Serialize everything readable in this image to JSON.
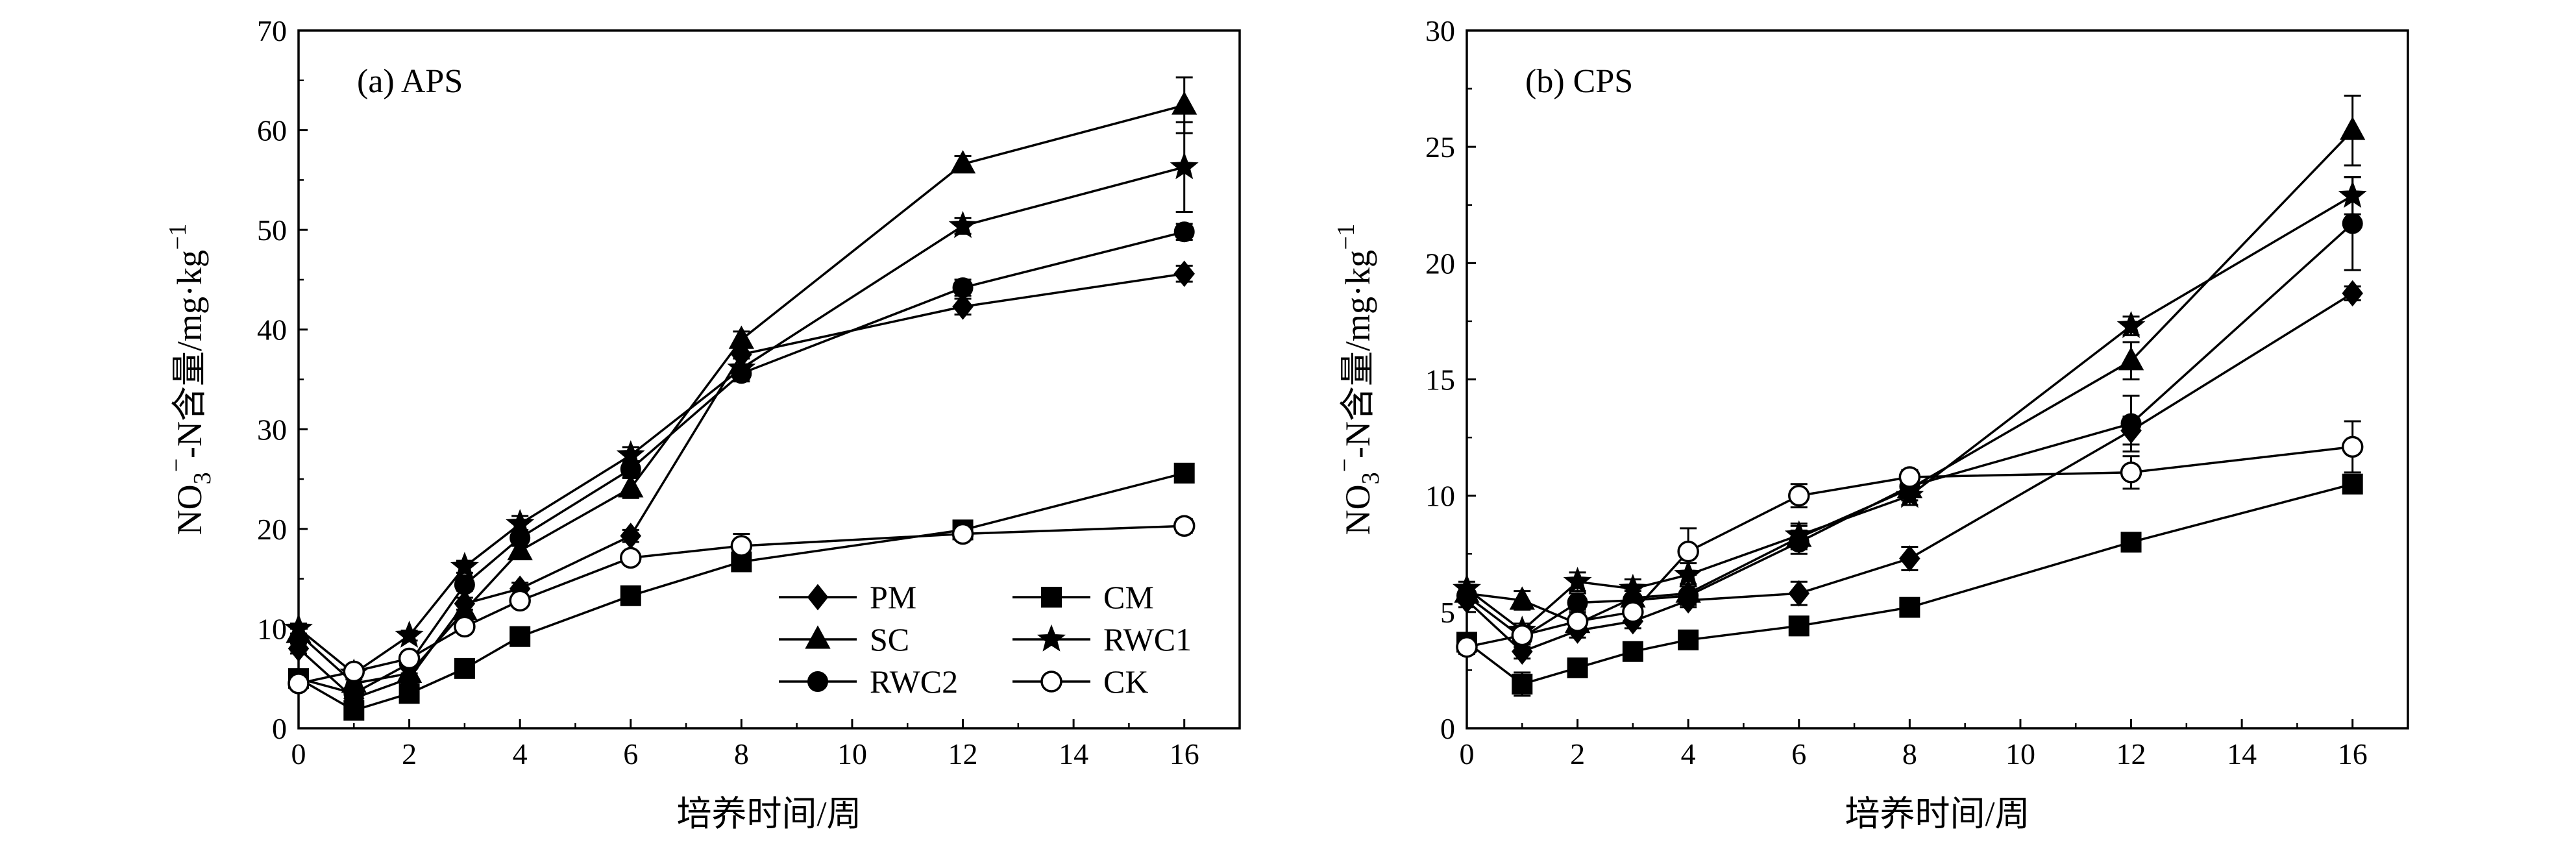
{
  "chart_data": [
    {
      "type": "line",
      "title": "(a) APS",
      "xlabel": "培养时间/周",
      "ylabel_main": "NO",
      "ylabel_sub": "3",
      "ylabel_sup_minus": "−",
      "ylabel_rest": "-N含量/mg·kg",
      "ylabel_unit_sup": "−1",
      "xlim": [
        0,
        17
      ],
      "ylim": [
        0,
        70
      ],
      "xticks": [
        0,
        2,
        4,
        6,
        8,
        10,
        12,
        14,
        16
      ],
      "yticks": [
        0,
        10,
        20,
        30,
        40,
        50,
        60,
        70
      ],
      "x": [
        0,
        1,
        2,
        3,
        4,
        6,
        8,
        12,
        16
      ],
      "legend_placement": "bottom-right",
      "series": [
        {
          "name": "PM",
          "marker": "diamond",
          "values": [
            8.0,
            3.0,
            5.0,
            12.5,
            14.0,
            19.3,
            37.5,
            42.3,
            45.6
          ],
          "errors": [
            0.5,
            0.4,
            0.5,
            0.6,
            0.6,
            0.6,
            1.0,
            0.8,
            0.8
          ]
        },
        {
          "name": "CM",
          "marker": "square",
          "values": [
            5.0,
            1.8,
            3.5,
            6.0,
            9.2,
            13.3,
            16.7,
            19.9,
            25.6
          ],
          "errors": [
            0.4,
            0.3,
            0.4,
            0.4,
            0.5,
            0.5,
            0.6,
            0.6,
            0.7
          ]
        },
        {
          "name": "SC",
          "marker": "triangle",
          "values": [
            9.5,
            4.5,
            5.5,
            11.8,
            17.8,
            24.1,
            39.0,
            56.6,
            62.5
          ],
          "errors": [
            0.5,
            0.4,
            0.5,
            0.6,
            0.8,
            1.0,
            0.8,
            0.8,
            2.8
          ]
        },
        {
          "name": "RWC1",
          "marker": "star",
          "values": [
            10.0,
            5.5,
            9.3,
            16.2,
            20.5,
            27.4,
            36.1,
            50.4,
            56.3
          ],
          "errors": [
            0.5,
            0.4,
            0.5,
            0.6,
            0.8,
            0.8,
            1.0,
            0.8,
            4.5
          ]
        },
        {
          "name": "RWC2",
          "marker": "circle-filled",
          "values": [
            5.0,
            3.5,
            6.5,
            14.4,
            19.1,
            26.0,
            35.6,
            44.2,
            49.8
          ],
          "errors": [
            0.4,
            0.4,
            0.5,
            0.6,
            0.8,
            0.8,
            0.8,
            0.8,
            0.8
          ]
        },
        {
          "name": "CK",
          "marker": "circle-open",
          "values": [
            4.5,
            5.7,
            7.0,
            10.2,
            12.8,
            17.1,
            18.3,
            19.5,
            20.3
          ],
          "errors": [
            0.4,
            0.4,
            0.5,
            0.6,
            0.6,
            0.5,
            1.2,
            0.6,
            0.7
          ]
        }
      ]
    },
    {
      "type": "line",
      "title": "(b) CPS",
      "xlabel": "培养时间/周",
      "ylabel_main": "NO",
      "ylabel_sub": "3",
      "ylabel_sup_minus": "−",
      "ylabel_rest": "-N含量/mg·kg",
      "ylabel_unit_sup": "−1",
      "xlim": [
        0,
        17
      ],
      "ylim": [
        0,
        30
      ],
      "xticks": [
        0,
        2,
        4,
        6,
        8,
        10,
        12,
        14,
        16
      ],
      "yticks": [
        0,
        5,
        10,
        15,
        20,
        25,
        30
      ],
      "x": [
        0,
        1,
        2,
        3,
        4,
        6,
        8,
        12,
        16
      ],
      "series": [
        {
          "name": "PM",
          "marker": "diamond",
          "values": [
            5.5,
            3.3,
            4.2,
            4.6,
            5.5,
            5.8,
            7.3,
            12.8,
            18.7
          ],
          "errors": [
            0.3,
            0.3,
            0.3,
            0.3,
            0.3,
            0.5,
            0.5,
            0.6,
            0.3
          ]
        },
        {
          "name": "CM",
          "marker": "square",
          "values": [
            3.7,
            1.9,
            2.6,
            3.3,
            3.8,
            4.4,
            5.2,
            8.0,
            10.5
          ],
          "errors": [
            0.3,
            0.5,
            0.3,
            0.3,
            0.3,
            0.4,
            0.3,
            0.4,
            0.3
          ]
        },
        {
          "name": "SC",
          "marker": "triangle",
          "values": [
            5.8,
            5.5,
            4.5,
            5.6,
            5.8,
            8.2,
            10.3,
            15.8,
            25.7
          ],
          "errors": [
            0.3,
            0.4,
            0.4,
            0.4,
            0.4,
            0.5,
            0.5,
            0.8,
            1.5
          ]
        },
        {
          "name": "RWC1",
          "marker": "star",
          "values": [
            6.0,
            4.2,
            6.3,
            6.0,
            6.6,
            8.3,
            10.0,
            17.3,
            22.9
          ],
          "errors": [
            0.3,
            0.3,
            0.4,
            0.4,
            0.5,
            0.5,
            0.4,
            0.4,
            0.8
          ]
        },
        {
          "name": "RWC2",
          "marker": "circle-filled",
          "values": [
            5.7,
            3.9,
            5.4,
            5.5,
            5.7,
            8.0,
            10.4,
            13.1,
            21.7
          ],
          "errors": [
            0.3,
            0.4,
            0.4,
            0.4,
            0.4,
            0.5,
            0.4,
            1.2,
            2.0
          ]
        },
        {
          "name": "CK",
          "marker": "circle-open",
          "values": [
            3.5,
            4.0,
            4.6,
            5.0,
            7.6,
            10.0,
            10.8,
            11.0,
            12.1
          ],
          "errors": [
            0.3,
            0.4,
            0.5,
            0.4,
            1.0,
            0.5,
            0.3,
            0.7,
            1.1
          ]
        }
      ]
    }
  ],
  "colors": {
    "ink": "#000000",
    "background": "#ffffff"
  }
}
